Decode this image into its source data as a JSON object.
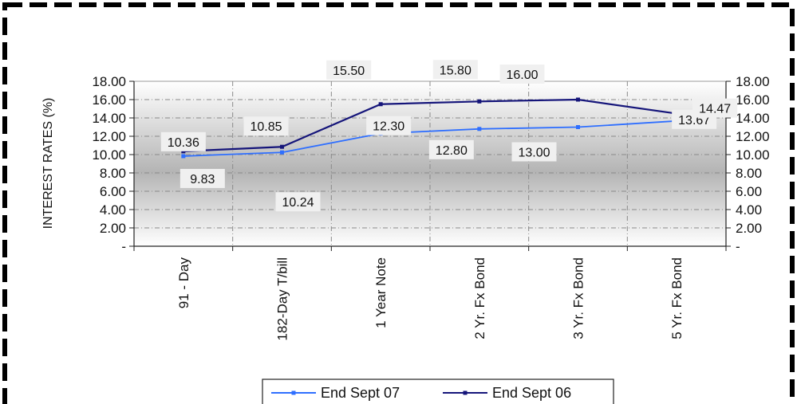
{
  "chart_data": {
    "type": "line",
    "title": "",
    "xlabel": "",
    "ylabel": "INTEREST RATES (%)",
    "ylim": [
      0,
      18
    ],
    "y_ticks": [
      "-",
      "2.00",
      "4.00",
      "6.00",
      "8.00",
      "10.00",
      "12.00",
      "14.00",
      "16.00",
      "18.00"
    ],
    "y_ticks_right": [
      "-",
      "2.00",
      "4.00",
      "6.00",
      "8.00",
      "10.00",
      "12.00",
      "14.00",
      "16.00",
      "18.00"
    ],
    "categories": [
      "91 - Day",
      "182-Day T/bill",
      "1 Year Note",
      "2 Yr. Fx Bond",
      "3 Yr. Fx Bond",
      "5 Yr. Fx Bond"
    ],
    "series": [
      {
        "name": "End Sept 07",
        "color": "#2f6fff",
        "values": [
          9.83,
          10.24,
          12.3,
          12.8,
          13.0,
          13.67
        ],
        "labels": [
          "9.83",
          "10.24",
          "12.30",
          "12.80",
          "13.00",
          "13.67"
        ]
      },
      {
        "name": "End Sept 06",
        "color": "#15157a",
        "values": [
          10.36,
          10.85,
          15.5,
          15.8,
          16.0,
          14.47
        ],
        "labels": [
          "10.36",
          "10.85",
          "15.50",
          "15.80",
          "16.00",
          "14.47"
        ]
      }
    ],
    "grid": true,
    "legend_position": "bottom-center"
  }
}
